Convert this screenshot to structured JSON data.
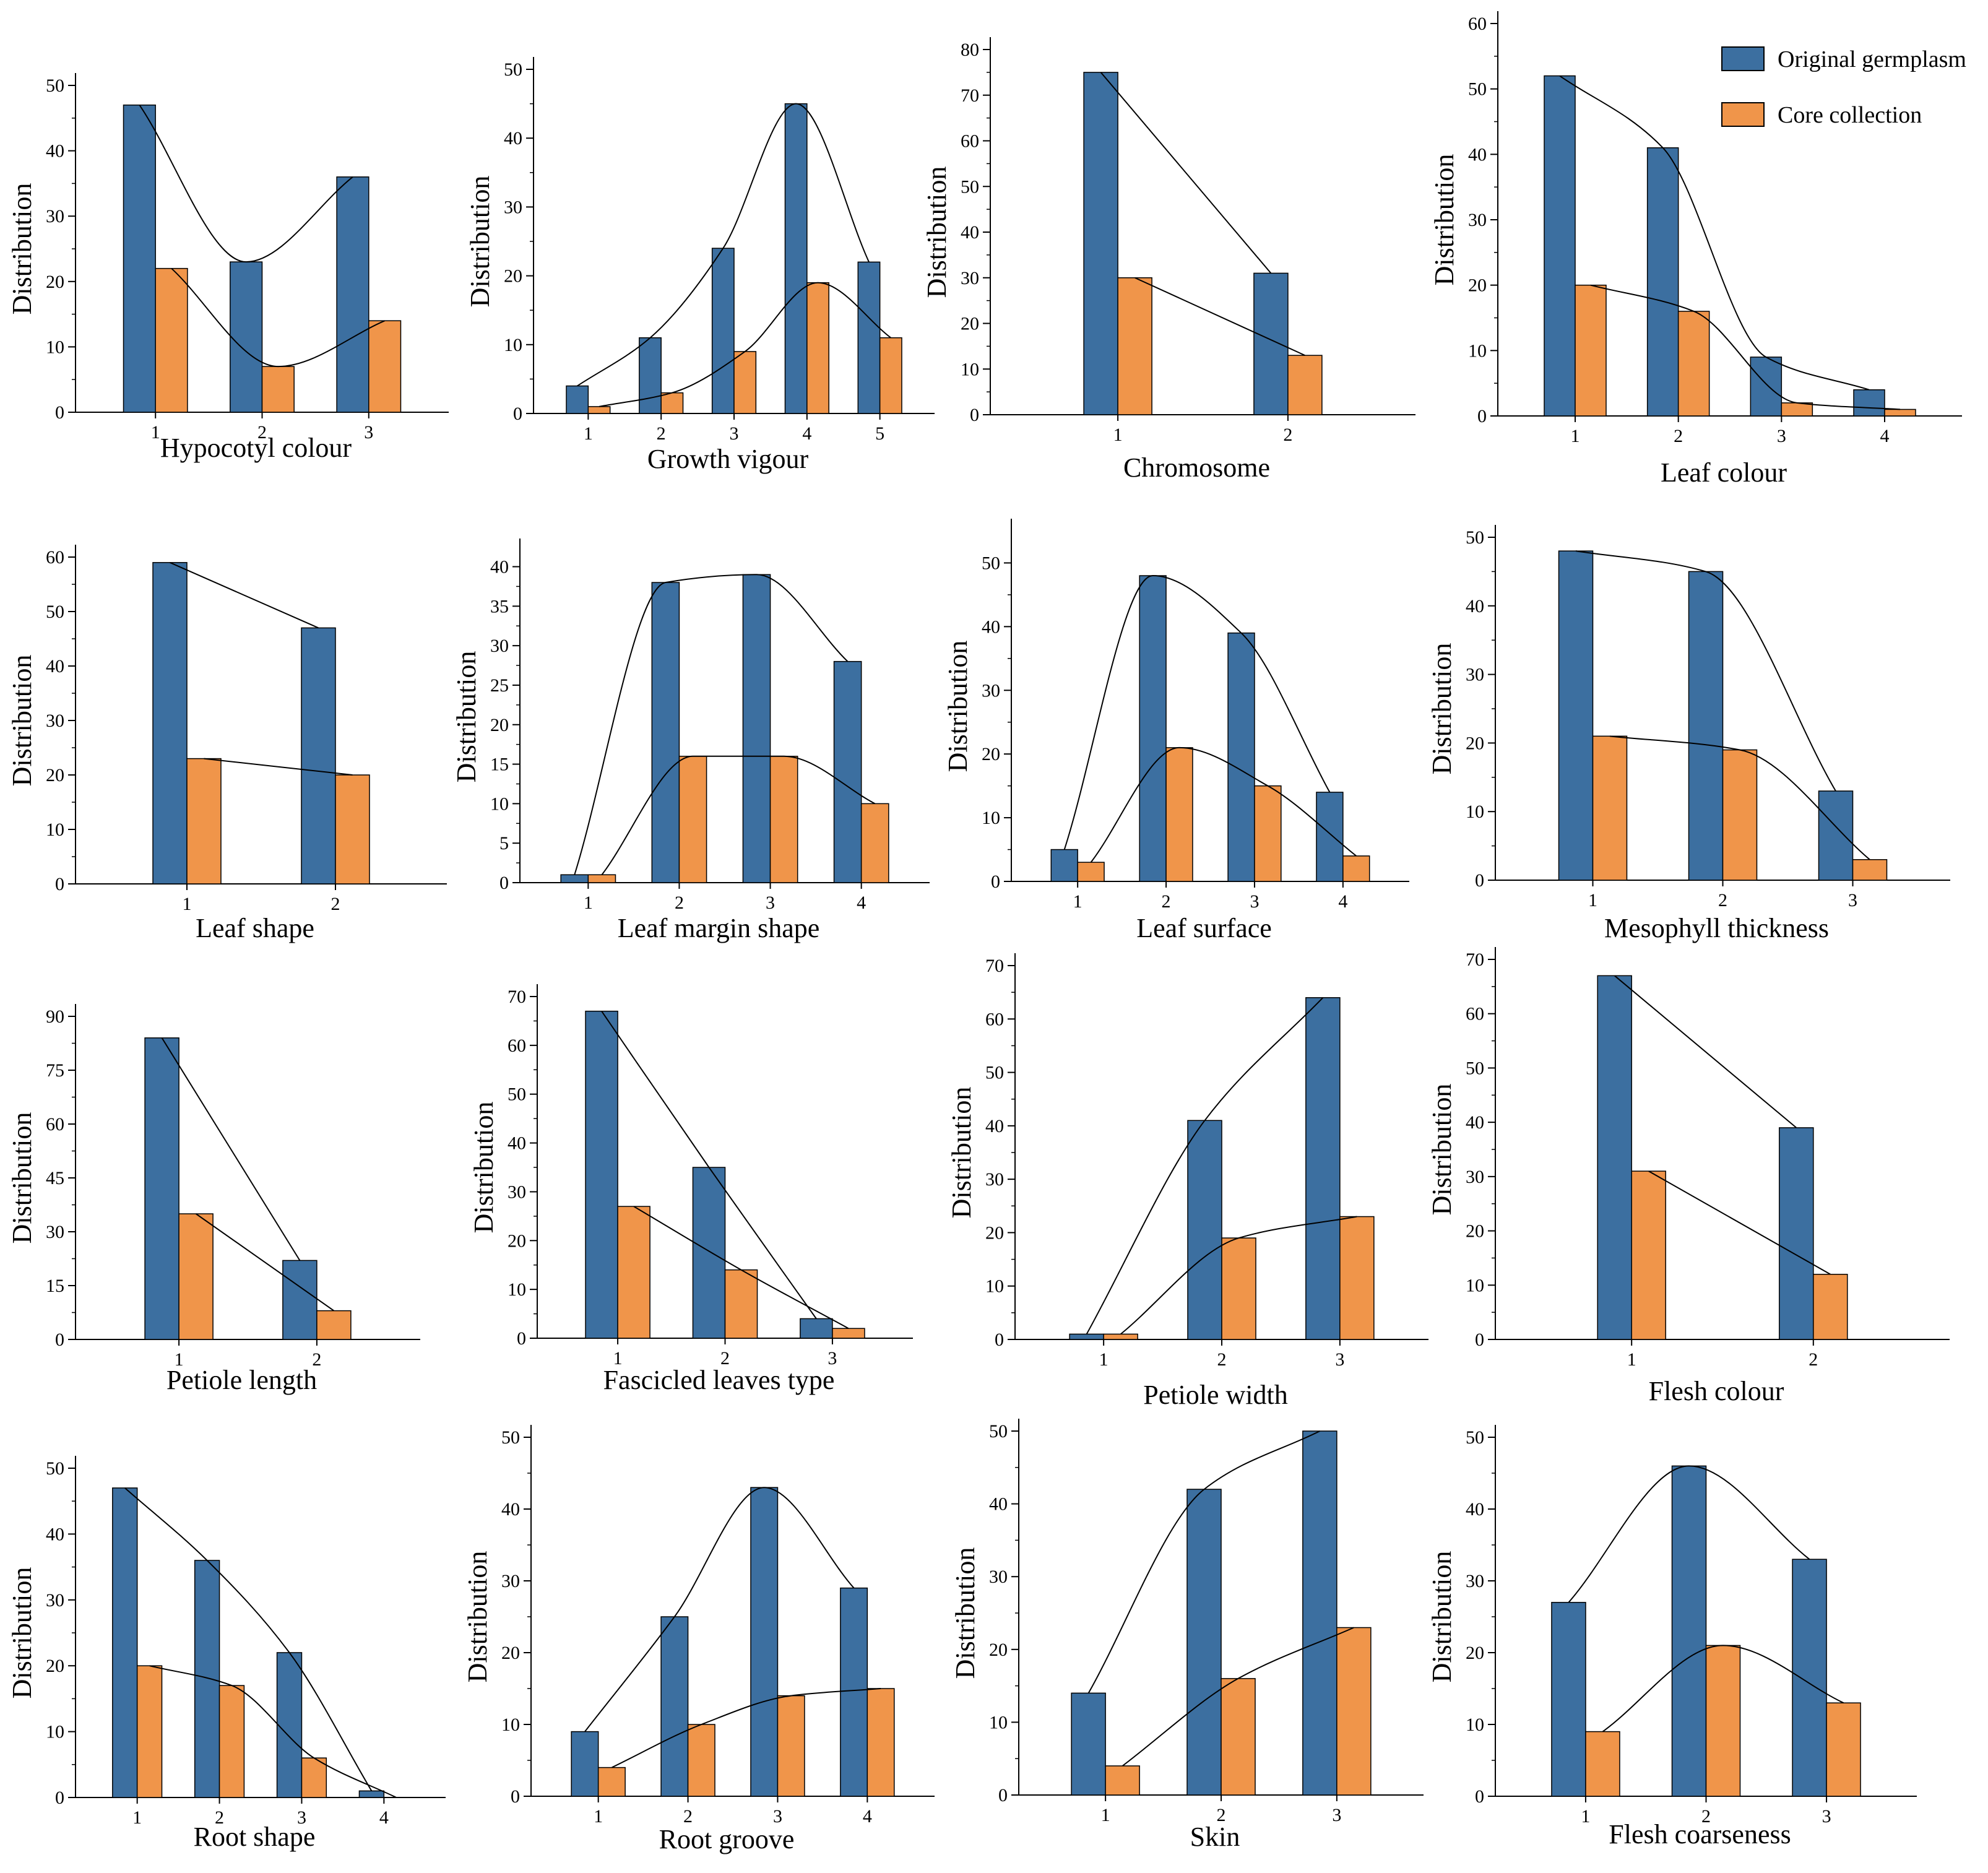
{
  "colors": {
    "original": "#3c6fa0",
    "core": "#f0954a",
    "stroke": "#000000"
  },
  "legend": {
    "original_label": "Original germplasm",
    "core_label": "Core collection",
    "position": "top-right"
  },
  "chart_data": [
    {
      "type": "bar",
      "title": "",
      "xlabel": "Hypocotyl colour",
      "ylabel": "Distribution",
      "ylim": [
        0,
        50
      ],
      "yticks": [
        0,
        10,
        20,
        30,
        40,
        50
      ],
      "categories": [
        "1",
        "2",
        "3"
      ],
      "series": [
        {
          "name": "Original germplasm",
          "values": [
            47,
            23,
            36
          ]
        },
        {
          "name": "Core collection",
          "values": [
            22,
            7,
            14
          ]
        }
      ]
    },
    {
      "type": "bar",
      "title": "",
      "xlabel": "Growth vigour",
      "ylabel": "Distribution",
      "ylim": [
        0,
        50
      ],
      "yticks": [
        0,
        10,
        20,
        30,
        40,
        50
      ],
      "categories": [
        "1",
        "2",
        "3",
        "4",
        "5"
      ],
      "series": [
        {
          "name": "Original germplasm",
          "values": [
            4,
            11,
            24,
            45,
            22
          ]
        },
        {
          "name": "Core collection",
          "values": [
            1,
            3,
            9,
            19,
            11
          ]
        }
      ]
    },
    {
      "type": "bar",
      "title": "",
      "xlabel": "Chromosome",
      "ylabel": "Distribution",
      "ylim": [
        0,
        80
      ],
      "yticks": [
        0,
        10,
        20,
        30,
        40,
        50,
        60,
        70,
        80
      ],
      "categories": [
        "1",
        "2"
      ],
      "series": [
        {
          "name": "Original germplasm",
          "values": [
            75,
            31
          ]
        },
        {
          "name": "Core collection",
          "values": [
            30,
            13
          ]
        }
      ]
    },
    {
      "type": "bar",
      "title": "",
      "xlabel": "Leaf colour",
      "ylabel": "Distribution",
      "ylim": [
        0,
        60
      ],
      "yticks": [
        0,
        10,
        20,
        30,
        40,
        50,
        60
      ],
      "categories": [
        "1",
        "2",
        "3",
        "4"
      ],
      "series": [
        {
          "name": "Original germplasm",
          "values": [
            52,
            41,
            9,
            4
          ]
        },
        {
          "name": "Core collection",
          "values": [
            20,
            16,
            2,
            1
          ]
        }
      ]
    },
    {
      "type": "bar",
      "title": "",
      "xlabel": "Leaf shape",
      "ylabel": "Distribution",
      "ylim": [
        0,
        60
      ],
      "yticks": [
        0,
        10,
        20,
        30,
        40,
        50,
        60
      ],
      "categories": [
        "1",
        "2"
      ],
      "series": [
        {
          "name": "Original germplasm",
          "values": [
            59,
            47
          ]
        },
        {
          "name": "Core collection",
          "values": [
            23,
            20
          ]
        }
      ]
    },
    {
      "type": "bar",
      "title": "",
      "xlabel": "Leaf margin shape",
      "ylabel": "Distribution",
      "ylim": [
        0,
        42
      ],
      "yticks": [
        0,
        5,
        10,
        15,
        20,
        25,
        30,
        35,
        40
      ],
      "categories": [
        "1",
        "2",
        "3",
        "4"
      ],
      "series": [
        {
          "name": "Original germplasm",
          "values": [
            1,
            38,
            39,
            28
          ]
        },
        {
          "name": "Core collection",
          "values": [
            1,
            16,
            16,
            10
          ]
        }
      ]
    },
    {
      "type": "bar",
      "title": "",
      "xlabel": "Leaf surface",
      "ylabel": "Distribution",
      "ylim": [
        0,
        55
      ],
      "yticks": [
        0,
        10,
        20,
        30,
        40,
        50
      ],
      "categories": [
        "1",
        "2",
        "3",
        "4"
      ],
      "series": [
        {
          "name": "Original germplasm",
          "values": [
            5,
            48,
            39,
            14
          ]
        },
        {
          "name": "Core collection",
          "values": [
            3,
            21,
            15,
            4
          ]
        }
      ]
    },
    {
      "type": "bar",
      "title": "",
      "xlabel": "Mesophyll thickness",
      "ylabel": "Distribution",
      "ylim": [
        0,
        50
      ],
      "yticks": [
        0,
        10,
        20,
        30,
        40,
        50
      ],
      "categories": [
        "1",
        "2",
        "3"
      ],
      "series": [
        {
          "name": "Original germplasm",
          "values": [
            48,
            45,
            13
          ]
        },
        {
          "name": "Core collection",
          "values": [
            21,
            19,
            3
          ]
        }
      ]
    },
    {
      "type": "bar",
      "title": "",
      "xlabel": "Petiole length",
      "ylabel": "Distribution",
      "ylim": [
        0,
        90
      ],
      "yticks": [
        0,
        15,
        30,
        45,
        60,
        75,
        90
      ],
      "categories": [
        "1",
        "2"
      ],
      "series": [
        {
          "name": "Original germplasm",
          "values": [
            84,
            22
          ]
        },
        {
          "name": "Core collection",
          "values": [
            35,
            8
          ]
        }
      ]
    },
    {
      "type": "bar",
      "title": "",
      "xlabel": "Fascicled leaves type",
      "ylabel": "Distribution",
      "ylim": [
        0,
        70
      ],
      "yticks": [
        0,
        10,
        20,
        30,
        40,
        50,
        60,
        70
      ],
      "categories": [
        "1",
        "2",
        "3"
      ],
      "series": [
        {
          "name": "Original germplasm",
          "values": [
            67,
            35,
            4
          ]
        },
        {
          "name": "Core collection",
          "values": [
            27,
            14,
            2
          ]
        }
      ]
    },
    {
      "type": "bar",
      "title": "",
      "xlabel": "Petiole width",
      "ylabel": "Distribution",
      "ylim": [
        0,
        70
      ],
      "yticks": [
        0,
        10,
        20,
        30,
        40,
        50,
        60,
        70
      ],
      "categories": [
        "1",
        "2",
        "3"
      ],
      "series": [
        {
          "name": "Original germplasm",
          "values": [
            1,
            41,
            64
          ]
        },
        {
          "name": "Core collection",
          "values": [
            1,
            19,
            23
          ]
        }
      ]
    },
    {
      "type": "bar",
      "title": "",
      "xlabel": "Flesh colour",
      "ylabel": "Distribution",
      "ylim": [
        0,
        70
      ],
      "yticks": [
        0,
        10,
        20,
        30,
        40,
        50,
        60,
        70
      ],
      "categories": [
        "1",
        "2"
      ],
      "series": [
        {
          "name": "Original germplasm",
          "values": [
            67,
            39
          ]
        },
        {
          "name": "Core collection",
          "values": [
            31,
            12
          ]
        }
      ]
    },
    {
      "type": "bar",
      "title": "",
      "xlabel": "Root shape",
      "ylabel": "Distribution",
      "ylim": [
        0,
        50
      ],
      "yticks": [
        0,
        10,
        20,
        30,
        40,
        50
      ],
      "categories": [
        "1",
        "2",
        "3",
        "4"
      ],
      "series": [
        {
          "name": "Original germplasm",
          "values": [
            47,
            36,
            22,
            1
          ]
        },
        {
          "name": "Core collection",
          "values": [
            20,
            17,
            6,
            0
          ]
        }
      ]
    },
    {
      "type": "bar",
      "title": "",
      "xlabel": "Root groove",
      "ylabel": "Distribution",
      "ylim": [
        0,
        50
      ],
      "yticks": [
        0,
        10,
        20,
        30,
        40,
        50
      ],
      "categories": [
        "1",
        "2",
        "3",
        "4"
      ],
      "series": [
        {
          "name": "Original germplasm",
          "values": [
            9,
            25,
            43,
            29
          ]
        },
        {
          "name": "Core collection",
          "values": [
            4,
            10,
            14,
            15
          ]
        }
      ]
    },
    {
      "type": "bar",
      "title": "",
      "xlabel": "Skin",
      "ylabel": "Distribution",
      "ylim": [
        0,
        50
      ],
      "yticks": [
        0,
        10,
        20,
        30,
        40,
        50
      ],
      "categories": [
        "1",
        "2",
        "3"
      ],
      "series": [
        {
          "name": "Original germplasm",
          "values": [
            14,
            42,
            50
          ]
        },
        {
          "name": "Core collection",
          "values": [
            4,
            16,
            23
          ]
        }
      ]
    },
    {
      "type": "bar",
      "title": "",
      "xlabel": "Flesh coarseness",
      "ylabel": "Distribution",
      "ylim": [
        0,
        50
      ],
      "yticks": [
        0,
        10,
        20,
        30,
        40,
        50
      ],
      "categories": [
        "1",
        "2",
        "3"
      ],
      "series": [
        {
          "name": "Original germplasm",
          "values": [
            27,
            46,
            33
          ]
        },
        {
          "name": "Core collection",
          "values": [
            9,
            21,
            13
          ]
        }
      ]
    }
  ]
}
